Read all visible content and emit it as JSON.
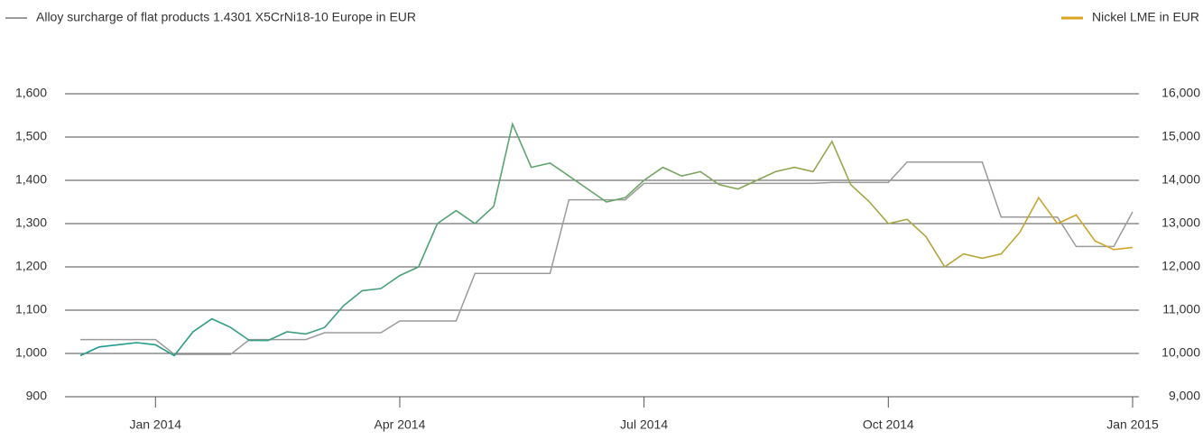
{
  "chart_data": {
    "type": "line",
    "categories": [
      null,
      null,
      null,
      null,
      "Jan 2014",
      null,
      null,
      null,
      null,
      null,
      null,
      null,
      null,
      null,
      null,
      null,
      null,
      "Apr 2014",
      null,
      null,
      null,
      null,
      null,
      null,
      null,
      null,
      null,
      null,
      null,
      null,
      "Jul 2014",
      null,
      null,
      null,
      null,
      null,
      null,
      null,
      null,
      null,
      null,
      null,
      null,
      "Oct 2014",
      null,
      null,
      null,
      null,
      null,
      null,
      null,
      null,
      null,
      null,
      null,
      null,
      "Jan 2015"
    ],
    "series": [
      {
        "name": "Alloy surcharge of flat products 1.4301 X5CrNi18-10 Europe in EUR",
        "color": "#9b9b9b",
        "axis": "y",
        "values": [
          1032,
          1032,
          1032,
          1032,
          1032,
          998,
          998,
          998,
          998,
          1032,
          1032,
          1032,
          1032,
          1048,
          1048,
          1048,
          1048,
          1075,
          1075,
          1075,
          1075,
          1185,
          1185,
          1185,
          1185,
          1185,
          1355,
          1355,
          1355,
          1355,
          1393,
          1393,
          1393,
          1393,
          1393,
          1393,
          1393,
          1393,
          1393,
          1393,
          1395,
          1395,
          1395,
          1395,
          1442,
          1442,
          1442,
          1442,
          1442,
          1315,
          1315,
          1315,
          1315,
          1247,
          1247,
          1247,
          1327
        ]
      },
      {
        "name": "Nickel LME in EUR",
        "color": "#d9a521",
        "gradient": [
          "#1a9a8e",
          "#6aa56a",
          "#d9a521"
        ],
        "axis": "y2",
        "values": [
          9950,
          10150,
          10200,
          10250,
          10200,
          9950,
          10500,
          10800,
          10600,
          10300,
          10300,
          10500,
          10450,
          10600,
          11100,
          11450,
          11500,
          11800,
          12000,
          13000,
          13300,
          13000,
          13400,
          15300,
          14300,
          14400,
          14100,
          13800,
          13500,
          13600,
          14000,
          14300,
          14100,
          14200,
          13900,
          13800,
          14000,
          14200,
          14300,
          14200,
          14900,
          13900,
          13500,
          13000,
          13100,
          12700,
          12000,
          12300,
          12200,
          12300,
          12800,
          13600,
          13000,
          13200,
          12600,
          12400,
          12450
        ]
      }
    ],
    "ylim": [
      900,
      1600
    ],
    "yticks": [
      900,
      {
        "value": 1000,
        "label": "1,000"
      },
      {
        "value": 1100,
        "label": "1,100"
      },
      {
        "value": 1200,
        "label": "1,200"
      },
      {
        "value": 1300,
        "label": "1,300"
      },
      {
        "value": 1400,
        "label": "1,400"
      },
      {
        "value": 1500,
        "label": "1,500"
      },
      {
        "value": 1600,
        "label": "1,600"
      }
    ],
    "y2lim": [
      9000,
      16000
    ],
    "y2ticks": [
      {
        "value": 9000,
        "label": "9,000"
      },
      {
        "value": 10000,
        "label": "10,000"
      },
      {
        "value": 11000,
        "label": "11,000"
      },
      {
        "value": 12000,
        "label": "12,000"
      },
      {
        "value": 13000,
        "label": "13,000"
      },
      {
        "value": 14000,
        "label": "14,000"
      },
      {
        "value": 15000,
        "label": "15,000"
      },
      {
        "value": 16000,
        "label": "16,000"
      }
    ],
    "grid": true,
    "legend": "top"
  }
}
